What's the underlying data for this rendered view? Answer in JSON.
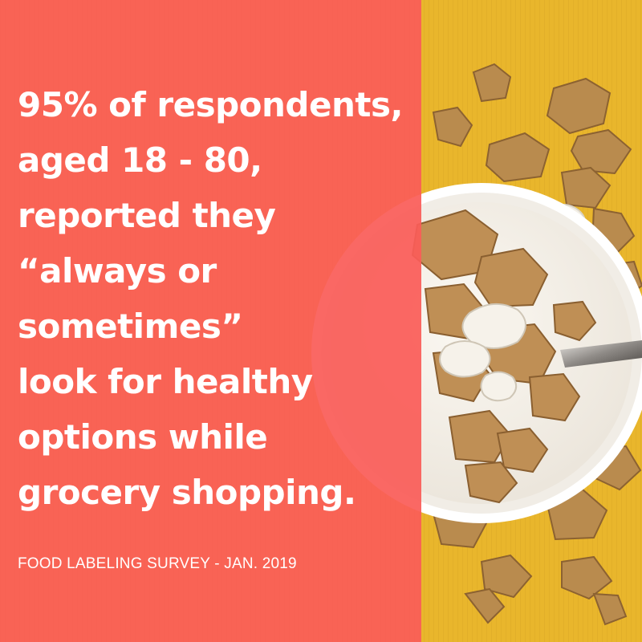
{
  "headline": {
    "lines": [
      "95% of respondents,",
      "aged 18 - 80,",
      "reported they",
      "“always or",
      "sometimes”",
      "look for healthy",
      "options while",
      "grocery shopping."
    ]
  },
  "source": "FOOD LABELING SURVEY - JAN. 2019",
  "colors": {
    "panel": "#fa5c58",
    "background": "#e8b62a",
    "text": "#ffffff"
  },
  "image": {
    "subject": "bowl-of-cereal-with-milk-and-spoon"
  }
}
